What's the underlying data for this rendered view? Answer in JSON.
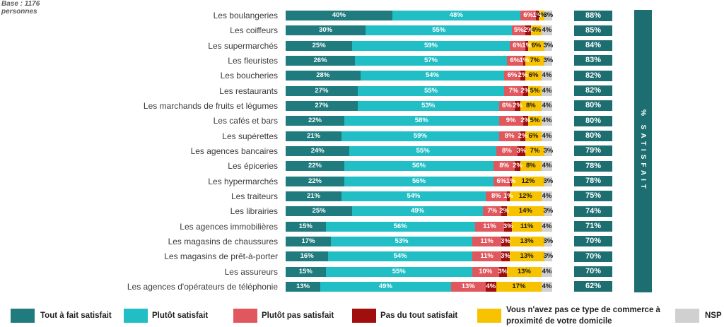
{
  "base_note": "Base : 1176 personnes",
  "chart_data": {
    "type": "bar",
    "orientation": "horizontal",
    "stacked": true,
    "unit": "%",
    "xlim": [
      0,
      100
    ],
    "grid": false,
    "legend": "bottom",
    "categories": [
      "Les boulangeries",
      "Les coiffeurs",
      "Les supermarchés",
      "Les fleuristes",
      "Les boucheries",
      "Les restaurants",
      "Les marchands de fruits et légumes",
      "Les cafés et bars",
      "Les supérettes",
      "Les agences bancaires",
      "Les épiceries",
      "Les hypermarchés",
      "Les traiteurs",
      "Les librairies",
      "Les agences immobilières",
      "Les magasins de chaussures",
      "Les magasins de prêt-à-porter",
      "Les assureurs",
      "Les agences d'opérateurs de téléphonie"
    ],
    "series": [
      {
        "name": "Tout à fait satisfait",
        "color": "#1f7b7e",
        "label_color": "#ffffff",
        "values": [
          40,
          30,
          25,
          26,
          28,
          27,
          27,
          22,
          21,
          24,
          22,
          22,
          21,
          25,
          15,
          17,
          16,
          15,
          13
        ]
      },
      {
        "name": "Plutôt satisfait",
        "color": "#22bec5",
        "label_color": "#ffffff",
        "values": [
          48,
          55,
          59,
          57,
          54,
          55,
          53,
          58,
          59,
          55,
          56,
          56,
          54,
          49,
          56,
          53,
          54,
          55,
          49
        ]
      },
      {
        "name": "Plutôt pas satisfait",
        "color": "#e0585d",
        "label_color": "#ffffff",
        "values": [
          6,
          5,
          6,
          6,
          6,
          7,
          6,
          9,
          8,
          8,
          8,
          6,
          8,
          7,
          11,
          11,
          11,
          10,
          13
        ]
      },
      {
        "name": "Pas du tout satisfait",
        "color": "#a10e0e",
        "label_color": "#ffffff",
        "values": [
          1,
          2,
          1,
          1,
          2,
          2,
          2,
          2,
          2,
          3,
          2,
          1,
          1,
          2,
          3,
          3,
          3,
          3,
          4
        ]
      },
      {
        "name": "Vous n'avez pas ce type de commerce à proximité de votre domicile",
        "color": "#f7c300",
        "label_color": "#1a1a1a",
        "values": [
          2,
          4,
          6,
          7,
          6,
          5,
          8,
          5,
          6,
          7,
          8,
          12,
          12,
          14,
          11,
          13,
          13,
          13,
          17
        ]
      },
      {
        "name": "NSP",
        "color": "#d0d0d0",
        "label_color": "#1a1a1a",
        "values": [
          3,
          4,
          3,
          3,
          4,
          4,
          4,
          4,
          4,
          3,
          4,
          3,
          4,
          3,
          4,
          3,
          3,
          4,
          4
        ]
      }
    ],
    "satisfait": {
      "label": "% SATISFAIT",
      "color": "#1d6e70",
      "values": [
        88,
        85,
        84,
        83,
        82,
        82,
        80,
        80,
        80,
        79,
        78,
        78,
        75,
        74,
        71,
        70,
        70,
        70,
        62
      ]
    }
  }
}
